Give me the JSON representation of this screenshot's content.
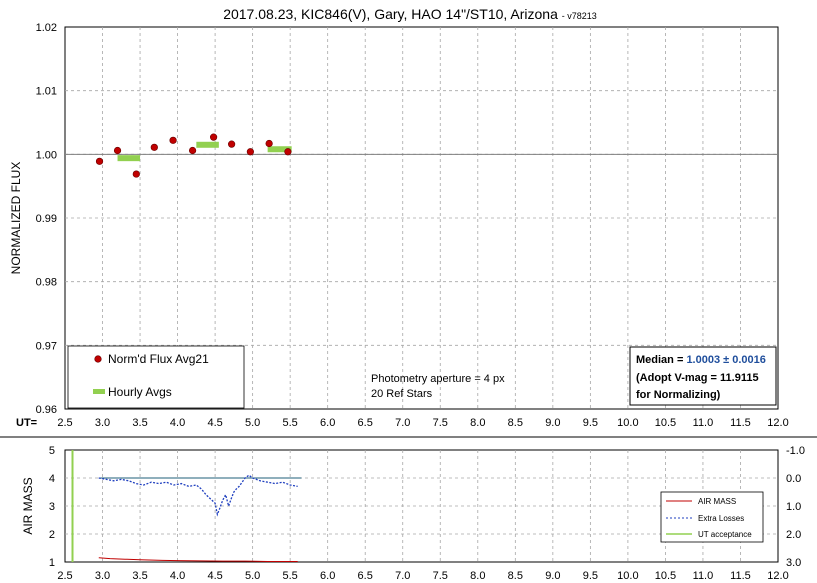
{
  "title": "2017.08.23, KIC846(V), Gary, HAO 14\"/ST10, Arizona",
  "title_suffix": "- v78213",
  "colors": {
    "flux_marker": "#c00000",
    "hourly": "#92d050",
    "airmass": "#c00000",
    "extra_losses": "#1f3fbf",
    "ut_acceptance": "#92d050",
    "median_value": "#1f4e9c",
    "grid": "#a6a6a6",
    "baseline": "#7f7f7f"
  },
  "x_axis": {
    "prefix": "UT=",
    "ticks": [
      "2.5",
      "3.0",
      "3.5",
      "4.0",
      "4.5",
      "5.0",
      "5.5",
      "6.0",
      "6.5",
      "7.0",
      "7.5",
      "8.0",
      "8.5",
      "9.0",
      "9.5",
      "10.0",
      "10.5",
      "11.0",
      "11.5",
      "12.0"
    ]
  },
  "notes": {
    "aperture": "Photometry aperture = 4 px",
    "ref_stars": "20 Ref Stars"
  },
  "median_box": {
    "label": "Median = ",
    "value": "1.0003 ± 0.0016",
    "line2": "(Adopt V-mag = 11.9115",
    "line3": " for Normalizing)"
  },
  "chart_data": [
    {
      "type": "scatter",
      "title": "2017.08.23, KIC846(V), Gary, HAO 14\"/ST10, Arizona",
      "xlabel": "UT=",
      "ylabel": "NORMALIZED FLUX",
      "xlim": [
        2.5,
        12.0
      ],
      "ylim": [
        0.96,
        1.02
      ],
      "yticks": [
        "1.02",
        "1.01",
        "1.00",
        "0.99",
        "0.98",
        "0.97",
        "0.96"
      ],
      "grid": true,
      "legend": {
        "placement": "bottom-left",
        "entries": [
          "Norm'd Flux Avg21",
          "Hourly Avgs"
        ]
      },
      "reference_line": 1.0,
      "series": [
        {
          "name": "Norm'd Flux Avg21",
          "x": [
            2.96,
            3.2,
            3.45,
            3.69,
            3.94,
            4.2,
            4.48,
            4.72,
            4.97,
            5.22,
            5.47
          ],
          "y": [
            0.9989,
            1.0006,
            0.9969,
            1.0011,
            1.0022,
            1.0006,
            1.0027,
            1.0016,
            1.0004,
            1.0017,
            1.0004
          ]
        },
        {
          "name": "Hourly Avgs",
          "segments": [
            {
              "x0": 3.2,
              "x1": 3.5,
              "y": 0.9994
            },
            {
              "x0": 4.25,
              "x1": 4.55,
              "y": 1.0015
            },
            {
              "x0": 5.2,
              "x1": 5.52,
              "y": 1.0008
            }
          ]
        }
      ]
    },
    {
      "type": "line",
      "ylabel": "AIR MASS",
      "xlim": [
        2.5,
        12.0
      ],
      "ylim": [
        1,
        5
      ],
      "yticks_left": [
        "5",
        "4",
        "3",
        "2",
        "1"
      ],
      "y2lim": [
        3.0,
        -1.0
      ],
      "yticks_right": [
        "-1.0",
        "0.0",
        "1.0",
        "2.0",
        "3.0"
      ],
      "legend": {
        "placement": "bottom-right",
        "entries": [
          "AIR MASS",
          "Extra Losses",
          "UT acceptance"
        ]
      },
      "series": [
        {
          "name": "AIR MASS",
          "x": [
            2.95,
            3.1,
            3.3,
            3.5,
            3.8,
            4.0,
            4.3,
            4.6,
            4.9,
            5.2,
            5.6
          ],
          "y": [
            1.15,
            1.12,
            1.1,
            1.08,
            1.06,
            1.05,
            1.04,
            1.03,
            1.03,
            1.02,
            1.02
          ]
        },
        {
          "name": "Extra Losses",
          "x": [
            2.95,
            3.05,
            3.15,
            3.25,
            3.35,
            3.45,
            3.55,
            3.65,
            3.75,
            3.85,
            3.95,
            4.05,
            4.15,
            4.25,
            4.32,
            4.38,
            4.44,
            4.5,
            4.53,
            4.56,
            4.6,
            4.64,
            4.68,
            4.72,
            4.75,
            4.78,
            4.82,
            4.86,
            4.9,
            4.95,
            5.0,
            5.05,
            5.1,
            5.2,
            5.3,
            5.4,
            5.5,
            5.6
          ],
          "y": [
            0.0,
            0.05,
            0.1,
            0.05,
            0.1,
            0.2,
            0.25,
            0.15,
            0.2,
            0.15,
            0.25,
            0.2,
            0.3,
            0.25,
            0.4,
            0.6,
            0.75,
            0.9,
            1.3,
            1.1,
            0.8,
            0.6,
            1.0,
            0.7,
            0.5,
            0.4,
            0.3,
            0.15,
            0.0,
            -0.1,
            0.0,
            0.05,
            0.1,
            0.15,
            0.2,
            0.15,
            0.25,
            0.3
          ]
        },
        {
          "name": "UT acceptance",
          "x": [
            2.6,
            2.6
          ],
          "y": [
            1,
            5
          ]
        }
      ]
    }
  ]
}
